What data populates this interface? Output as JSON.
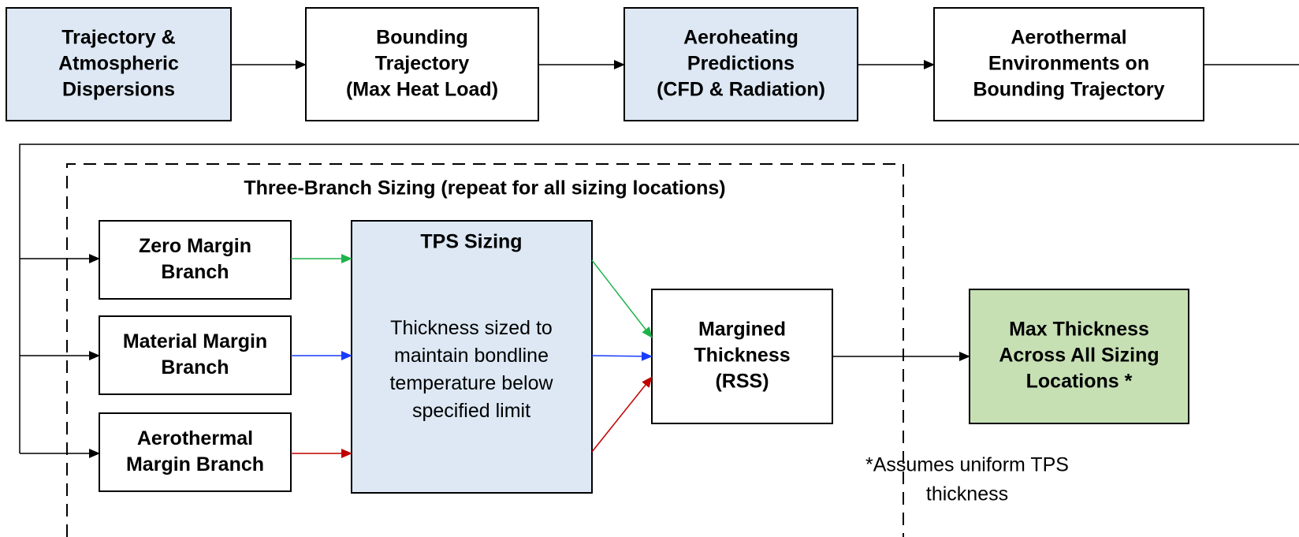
{
  "top_row": [
    {
      "label": [
        "Trajectory &",
        "Atmospheric",
        "Dispersions"
      ]
    },
    {
      "label": [
        "Bounding",
        "Trajectory",
        "(Max Heat Load)"
      ]
    },
    {
      "label": [
        "Aeroheating",
        "Predictions",
        "(CFD & Radiation)"
      ]
    },
    {
      "label": [
        "Aerothermal",
        "Environments on",
        "Bounding Trajectory"
      ]
    }
  ],
  "sizing_group": {
    "title": "Three-Branch Sizing (repeat for all sizing locations)"
  },
  "branches": [
    {
      "label": [
        "Zero Margin",
        "Branch"
      ]
    },
    {
      "label": [
        "Material Margin",
        "Branch"
      ]
    },
    {
      "label": [
        "Aerothermal",
        "Margin Branch"
      ]
    }
  ],
  "tps_sizing": {
    "title": "TPS Sizing",
    "body": [
      "Thickness sized to",
      "maintain bondline",
      "temperature below",
      "specified limit"
    ]
  },
  "margined": {
    "label": [
      "Margined",
      "Thickness",
      "(RSS)"
    ]
  },
  "result": {
    "label": [
      "Max Thickness",
      "Across All Sizing",
      "Locations *"
    ]
  },
  "footnote": [
    "*Assumes uniform TPS",
    "thickness"
  ]
}
